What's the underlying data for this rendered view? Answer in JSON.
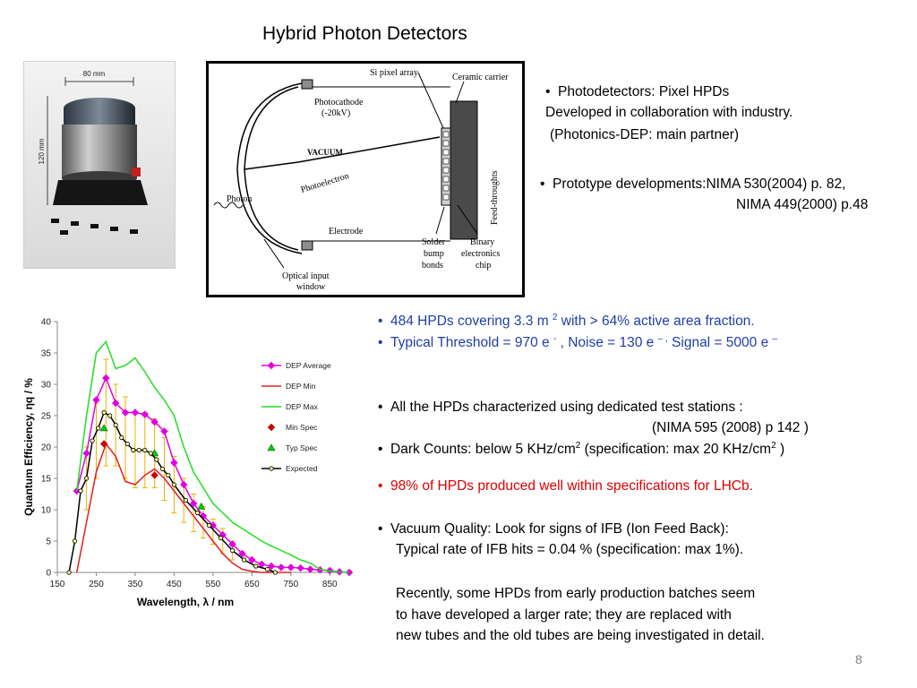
{
  "title": "Hybrid Photon Detectors",
  "photo": {
    "width_label": "80 mm",
    "height_label": "120 mm"
  },
  "schematic": {
    "labels": {
      "si_pixel": "Si pixel array",
      "ceramic": "Ceramic carrier",
      "photocathode_1": "Photocathode",
      "photocathode_2": "(-20kV)",
      "vacuum": "VACUUM",
      "photoelectron": "Photoelectron",
      "feed": "Feed-throughts",
      "photon": "Photon",
      "electrode": "Electrode",
      "solder_1": "Solder",
      "solder_2": "bump",
      "solder_3": "bonds",
      "binary_1": "Binary",
      "binary_2": "electronics",
      "binary_3": "chip",
      "optical_1": "Optical input",
      "optical_2": "window"
    }
  },
  "text": {
    "photodet_1": "Photodetectors:   Pixel HPDs",
    "photodet_2": "Developed in collaboration with industry.",
    "photodet_3": "(Photonics-DEP: main partner)",
    "proto_1": "Prototype developments:NIMA 530(2004)  p. 82,",
    "proto_2": "NIMA  449(2000) p.48",
    "hpd_a": "484 HPDs covering 3.3 m ",
    "hpd_sup": "2",
    "hpd_b": "  with  > 64%  active area fraction.",
    "thr_a": "Typical Threshold = 970 e ",
    "thr_sup1": "-",
    "thr_b": "   ,  Noise = 130 e ",
    "thr_sup2": "– ,",
    "thr_c": "      Signal  = 5000 e ",
    "thr_sup3": "–",
    "char_1": "All the HPDs  characterized using dedicated test stations   :",
    "char_2": "(NIMA  595 (2008) p 142 )",
    "dark_a": "Dark Counts:  below 5 KHz/cm",
    "dark_sup1": "2",
    "dark_b": "   (specification:  max   20  KHz/cm",
    "dark_sup2": "2",
    "dark_c": " )",
    "spec": "98%  of HPDs  produced well within specifications  for LHCb.",
    "vac_1": "Vacuum Quality:  Look for signs of  IFB (Ion Feed Back):",
    "vac_2": "Typical rate of  IFB  hits = 0.04 %   (specification: max  1%).",
    "recent_1": "Recently,  some HPDs from early production batches seem",
    "recent_2": "to have developed a larger  rate; they are replaced with",
    "recent_3": "new tubes and the old tubes are being investigated in detail.",
    "bullet": "•"
  },
  "page_number": "8",
  "chart_data": {
    "type": "line",
    "xlabel": "Wavelength, λ / nm",
    "ylabel": "Quantum Efficiency, ηq / %",
    "xlim": [
      150,
      900
    ],
    "ylim": [
      0,
      40
    ],
    "xticks": [
      150,
      250,
      350,
      450,
      550,
      650,
      750,
      850
    ],
    "yticks": [
      0,
      5,
      10,
      15,
      20,
      25,
      30,
      35,
      40
    ],
    "legend_position": "right",
    "series": [
      {
        "name": "DEP Average",
        "color": "#e000e0",
        "marker": "diamond",
        "x": [
          200,
          225,
          250,
          275,
          300,
          325,
          350,
          375,
          400,
          425,
          450,
          475,
          500,
          525,
          550,
          575,
          600,
          625,
          650,
          675,
          700,
          725,
          750,
          775,
          800,
          825,
          850,
          875,
          900
        ],
        "y": [
          13,
          19,
          27.5,
          31,
          27,
          25.5,
          25.5,
          25.2,
          24,
          22.5,
          17.5,
          14,
          11,
          9,
          7.5,
          6,
          4.5,
          3,
          2,
          1.3,
          1,
          0.8,
          0.8,
          0.7,
          0.5,
          0.4,
          0.3,
          0.1,
          0
        ]
      },
      {
        "name": "DEP Min",
        "color": "#e02020",
        "marker": "none",
        "x": [
          200,
          225,
          250,
          275,
          300,
          325,
          350,
          375,
          400,
          425,
          450,
          475,
          500,
          525,
          550,
          575,
          600,
          625,
          650,
          675,
          700,
          725,
          750
        ],
        "y": [
          0,
          8,
          16,
          20.5,
          18.5,
          14.5,
          14,
          15.5,
          16.5,
          15,
          13,
          11,
          9,
          7,
          5,
          3,
          1.5,
          0.5,
          0.2,
          0,
          0,
          0,
          0
        ]
      },
      {
        "name": "DEP Max",
        "color": "#22dd22",
        "marker": "none",
        "x": [
          200,
          225,
          250,
          275,
          300,
          325,
          350,
          375,
          400,
          425,
          450,
          475,
          500,
          525,
          550,
          575,
          600,
          625,
          650,
          675,
          700,
          725,
          750,
          775,
          800,
          825,
          850,
          875,
          900
        ],
        "y": [
          13,
          25,
          35,
          36.8,
          32.5,
          33,
          34.2,
          32,
          29.5,
          27.5,
          25,
          20,
          16,
          13.5,
          11,
          9.5,
          8,
          7,
          6,
          5,
          4.2,
          3.5,
          2.8,
          2,
          1.5,
          0.5,
          0.2,
          0.1,
          0
        ]
      },
      {
        "name": "Min Spec",
        "color": "#cc0000",
        "marker": "diamond",
        "x": [
          270,
          400
        ],
        "y": [
          20.5,
          15.5
        ]
      },
      {
        "name": "Typ Spec",
        "color": "#00cc00",
        "marker": "triangle",
        "x": [
          270,
          400,
          520
        ],
        "y": [
          23,
          19,
          10.5
        ]
      },
      {
        "name": "Expected",
        "color": "#000000",
        "marker": "circle",
        "x": [
          180,
          195,
          210,
          225,
          240,
          255,
          270,
          285,
          300,
          315,
          330,
          345,
          360,
          375,
          390,
          405,
          420,
          435,
          450,
          480,
          510,
          540,
          570,
          600,
          630,
          660,
          690,
          710
        ],
        "y": [
          0,
          5,
          13,
          15,
          21,
          23,
          25.5,
          25,
          23.5,
          21.5,
          20.5,
          19.5,
          19.5,
          19.5,
          19,
          18,
          16.5,
          15.5,
          14,
          11.5,
          9.5,
          7.5,
          5.5,
          3.5,
          2,
          1,
          0.5,
          0
        ]
      }
    ],
    "error_bars": {
      "color": "#f0b000",
      "x": [
        225,
        250,
        275,
        300,
        325,
        350,
        375,
        400,
        425,
        450,
        475,
        500,
        525,
        550,
        575,
        600
      ],
      "y": [
        15,
        21,
        25.5,
        23.5,
        21.5,
        19.5,
        19.5,
        19,
        16.5,
        14,
        11.5,
        9.5,
        8,
        6.5,
        5,
        3.5
      ],
      "err": [
        5,
        6,
        8.5,
        6.5,
        6.5,
        6,
        6,
        5.5,
        5,
        4.5,
        3.5,
        3,
        2.5,
        2,
        2,
        1.5
      ]
    }
  }
}
